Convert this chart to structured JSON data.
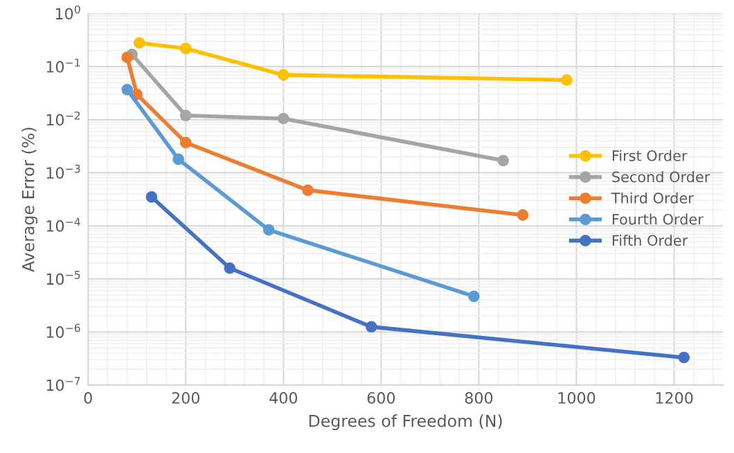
{
  "chart_data": {
    "type": "line",
    "xlabel": "Degrees of Freedom (N)",
    "ylabel": "Average Error (%)",
    "log": "y",
    "grid": true,
    "legend": "right",
    "marker": "circle",
    "line_style": "solid",
    "xlim": [
      0,
      1300
    ],
    "xticks": [
      0,
      200,
      400,
      600,
      800,
      1000,
      1200
    ],
    "ylim": [
      1e-07,
      1
    ],
    "yticks": [
      {
        "value": 1e-07,
        "label": "10$^{−7}$"
      },
      {
        "value": 1e-06,
        "label": "10$^{−6}$"
      },
      {
        "value": 1e-05,
        "label": "10$^{−5}$"
      },
      {
        "value": 0.0001,
        "label": "10$^{−4}$"
      },
      {
        "value": 0.001,
        "label": "10$^{−3}$"
      },
      {
        "value": 0.01,
        "label": "10$^{−2}$"
      },
      {
        "value": 0.1,
        "label": "10$^{−1}$"
      },
      {
        "value": 1,
        "label": "10$^{0}$"
      }
    ],
    "series": [
      {
        "name": "First Order",
        "color": "#ffc000",
        "x": [
          105,
          200,
          400,
          980
        ],
        "values": [
          0.28,
          0.22,
          0.07,
          0.056
        ]
      },
      {
        "name": "Second Order",
        "color": "#a5a5a5",
        "x": [
          90,
          200,
          400,
          850
        ],
        "values": [
          0.17,
          0.012,
          0.0105,
          0.0017
        ]
      },
      {
        "name": "Third Order",
        "color": "#ed7d31",
        "x": [
          80,
          100,
          200,
          450,
          890
        ],
        "values": [
          0.15,
          0.03,
          0.0037,
          0.00047,
          0.00016
        ]
      },
      {
        "name": "Fourth Order",
        "color": "#5b9bd5",
        "x": [
          80,
          185,
          370,
          790
        ],
        "values": [
          0.037,
          0.0018,
          8.4e-05,
          4.7e-06
        ]
      },
      {
        "name": "Fifth Order",
        "color": "#4472c4",
        "x": [
          130,
          290,
          580,
          1220
        ],
        "values": [
          0.00035,
          1.6e-05,
          1.25e-06,
          3.3e-07
        ]
      }
    ]
  }
}
